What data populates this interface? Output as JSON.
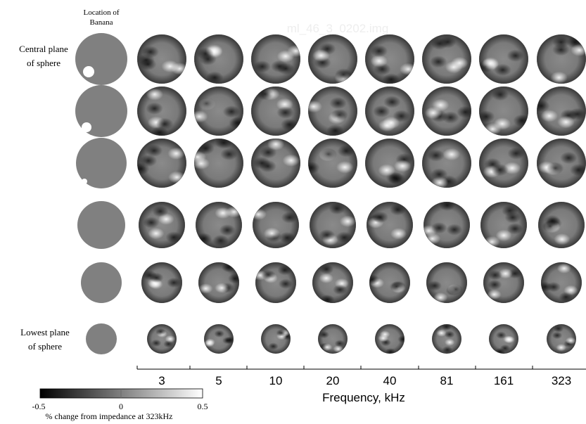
{
  "header": {
    "lines": [
      "Location of",
      "Banana"
    ],
    "watermark": "ml_46_3_0202.img"
  },
  "row_labels": {
    "top": [
      "Central plane",
      "of sphere"
    ],
    "bottom": [
      "Lowest plane",
      "of sphere"
    ]
  },
  "frequency_axis": {
    "labels": [
      "3",
      "5",
      "10",
      "20",
      "40",
      "81",
      "161",
      "323"
    ],
    "title": "Frequency, kHz"
  },
  "colorbar": {
    "labels": [
      "-0.5",
      "0",
      "0.5"
    ],
    "caption": "% change from impedance at 323kHz"
  }
}
